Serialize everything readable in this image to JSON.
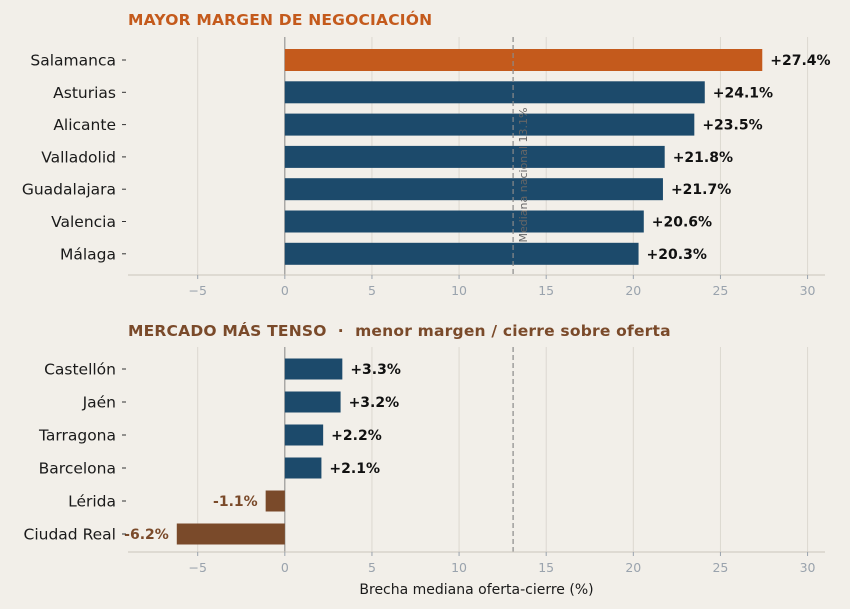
{
  "chart_data": [
    {
      "type": "bar",
      "orientation": "horizontal",
      "title": "MAYOR MARGEN DE NEGOCIACIÓN",
      "categories": [
        "Salamanca",
        "Asturias",
        "Alicante",
        "Valladolid",
        "Guadalajara",
        "Valencia",
        "Málaga"
      ],
      "values": [
        27.4,
        24.1,
        23.5,
        21.8,
        21.7,
        20.6,
        20.3
      ],
      "value_labels": [
        "+27.4%",
        "+24.1%",
        "+23.5%",
        "+21.8%",
        "+21.7%",
        "+20.6%",
        "+20.3%"
      ],
      "highlight_index": 0,
      "xlim": [
        -9,
        31
      ],
      "xticks": [
        -5,
        0,
        5,
        10,
        15,
        20,
        25,
        30
      ],
      "xtick_labels": [
        "−5",
        "0",
        "5",
        "10",
        "15",
        "20",
        "25",
        "30"
      ],
      "reference_line": {
        "value": 13.1,
        "label": "Mediana nacional 13.1%"
      },
      "grid": "vertical",
      "colors": {
        "highlight": "#c45a1c",
        "bar": "#1c4a6b",
        "title": "#c45a1c",
        "label": "#111111"
      }
    },
    {
      "type": "bar",
      "orientation": "horizontal",
      "title": "MERCADO MÁS TENSO  ·  menor margen / cierre sobre oferta",
      "categories": [
        "Castellón",
        "Jaén",
        "Tarragona",
        "Barcelona",
        "Lérida",
        "Ciudad Real"
      ],
      "values": [
        3.3,
        3.2,
        2.2,
        2.1,
        -1.1,
        -6.2
      ],
      "value_labels": [
        "+3.3%",
        "+3.2%",
        "+2.2%",
        "+2.1%",
        "-1.1%",
        "-6.2%"
      ],
      "xlim": [
        -9,
        31
      ],
      "xticks": [
        -5,
        0,
        5,
        10,
        15,
        20,
        25,
        30
      ],
      "xtick_labels": [
        "−5",
        "0",
        "5",
        "10",
        "15",
        "20",
        "25",
        "30"
      ],
      "xlabel": "Brecha mediana oferta-cierre (%)",
      "reference_line": {
        "value": 13.1
      },
      "grid": "vertical",
      "colors": {
        "positive": "#1c4a6b",
        "negative": "#7a4a2a",
        "title": "#7a4a2a",
        "label_positive": "#111111",
        "label_negative": "#7a4a2a"
      }
    }
  ]
}
